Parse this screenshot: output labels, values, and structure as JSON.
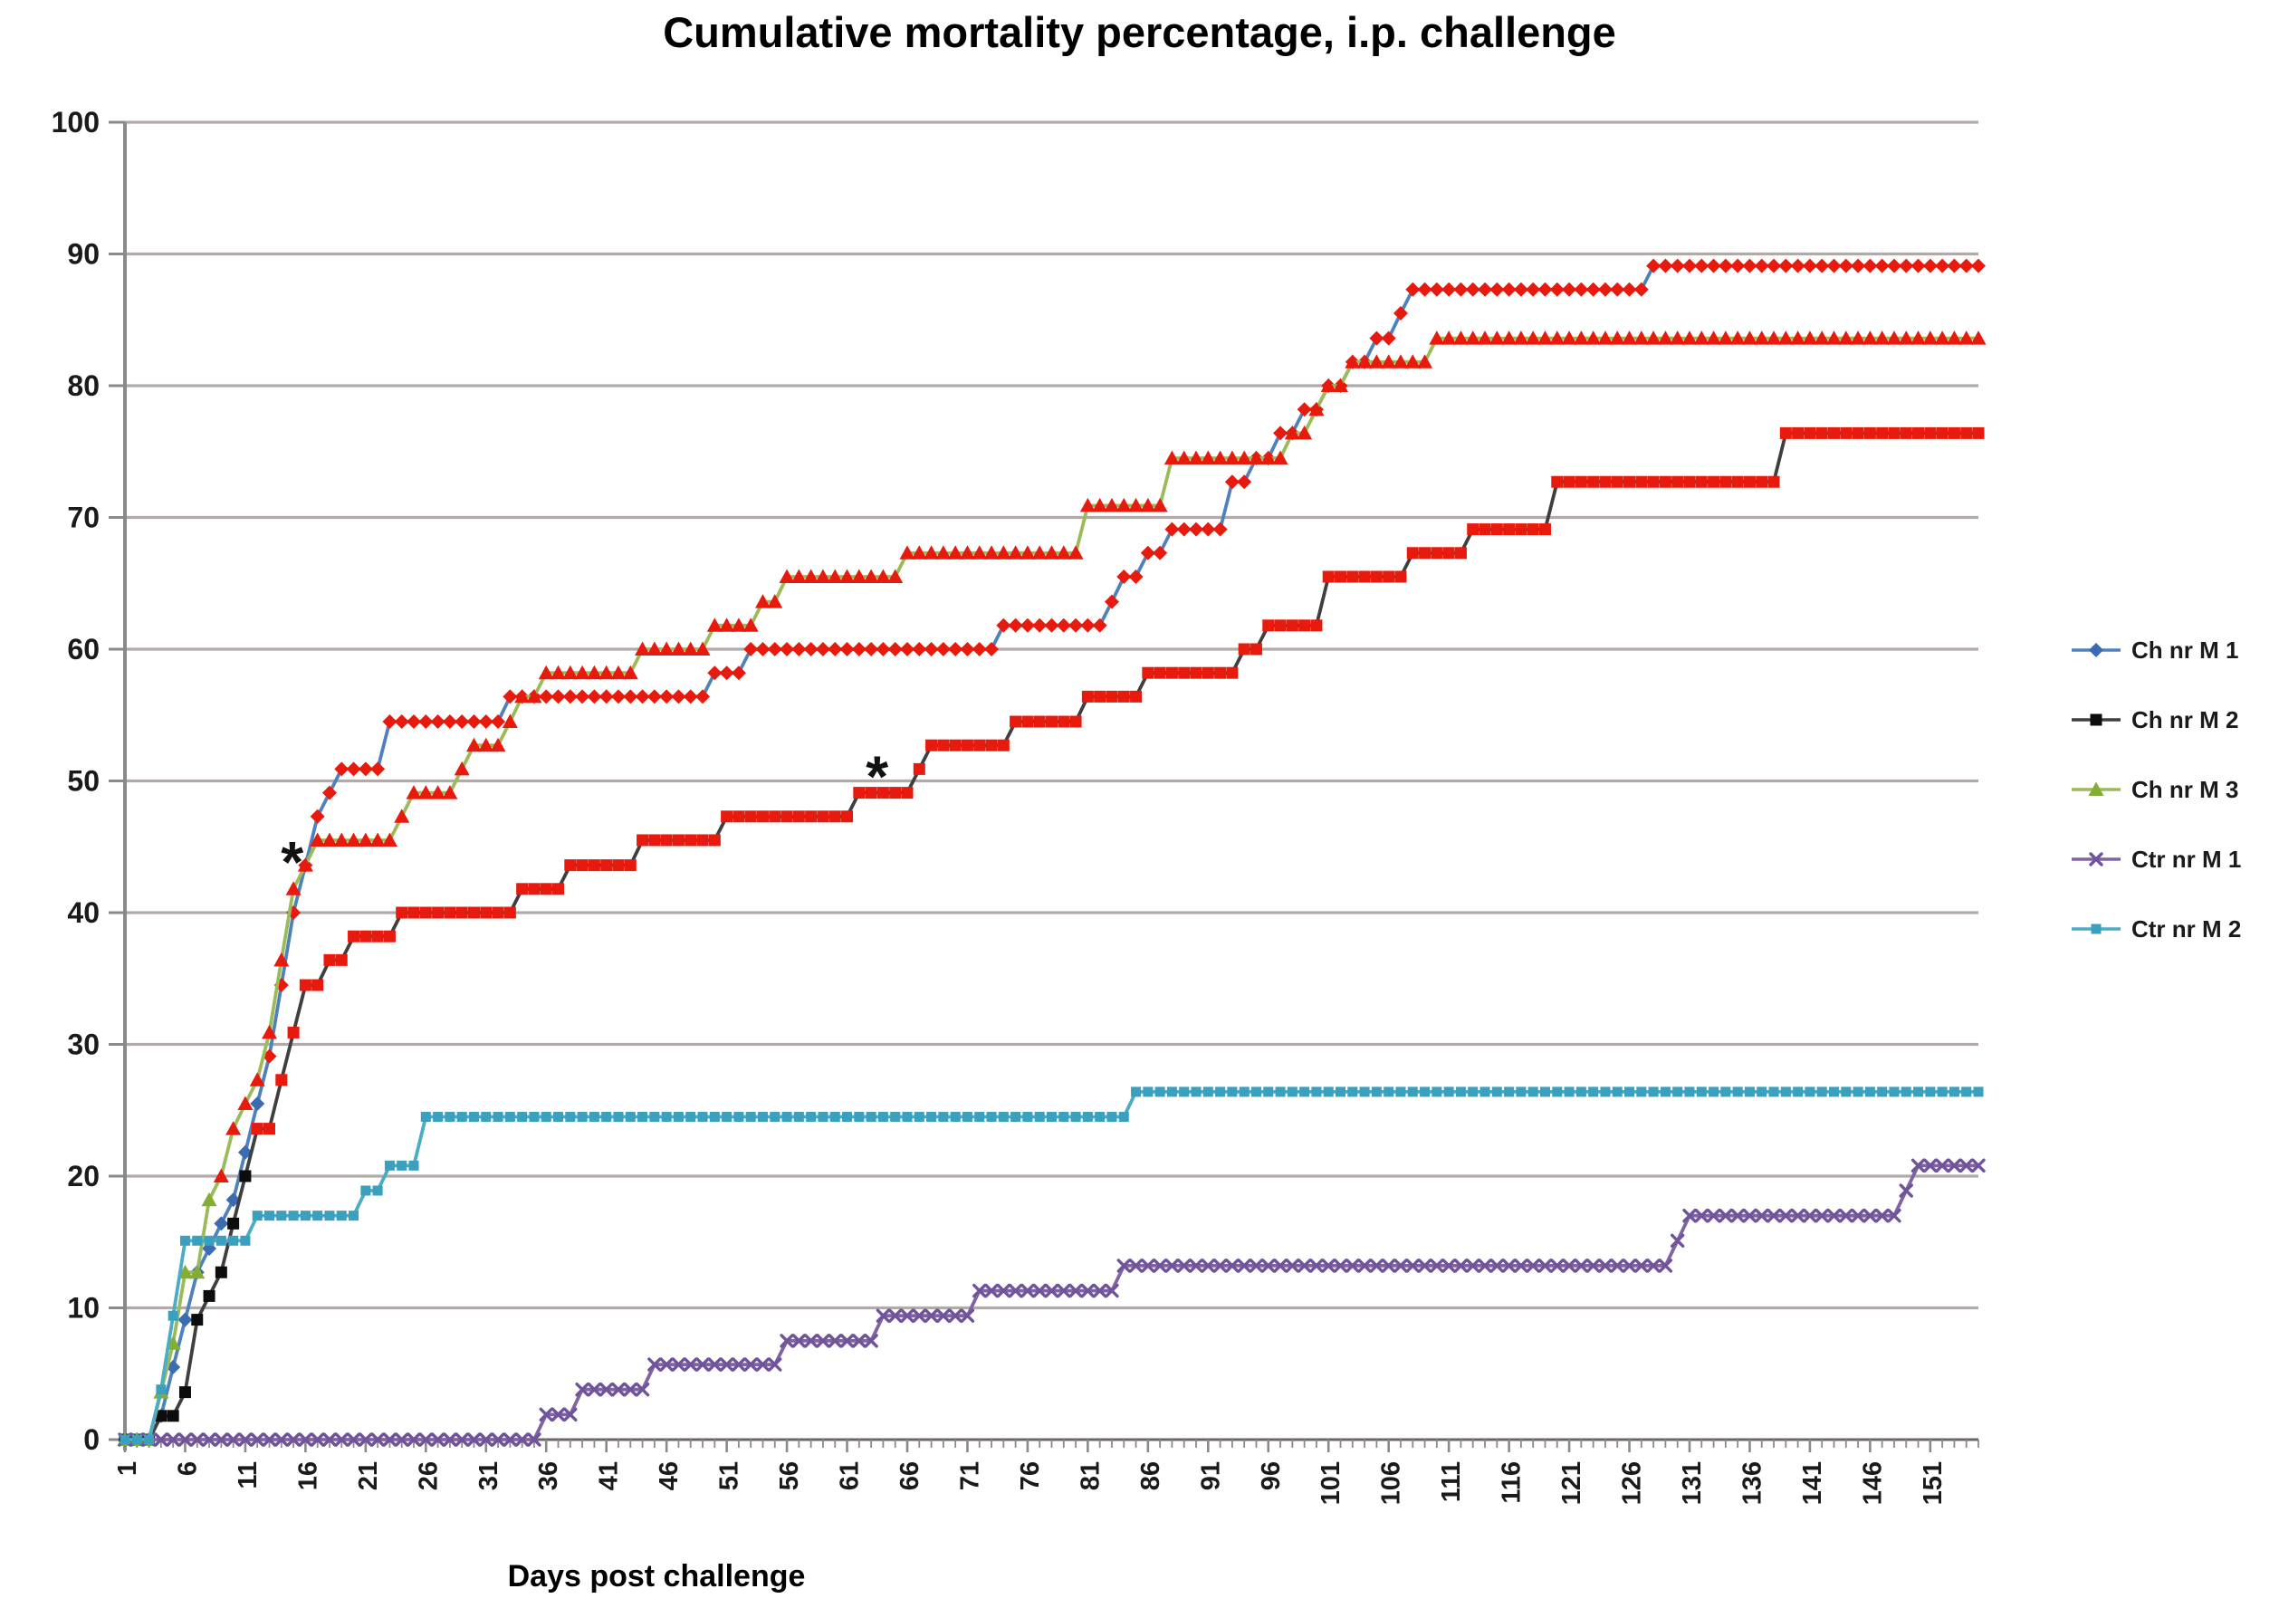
{
  "chart_data": {
    "type": "line",
    "title": "Cumulative mortality percentage, i.p. challenge",
    "xlabel": "Days post challenge",
    "ylabel": "",
    "xlim": [
      1,
      155
    ],
    "ylim": [
      0,
      100
    ],
    "grid": "horizontal",
    "legend_position": "right",
    "y_ticks": [
      0,
      10,
      20,
      30,
      40,
      50,
      60,
      70,
      80,
      90,
      100
    ],
    "x_tick_labels": [
      1,
      6,
      11,
      16,
      21,
      26,
      31,
      36,
      41,
      46,
      51,
      56,
      61,
      66,
      71,
      76,
      81,
      86,
      91,
      96,
      101,
      106,
      111,
      116,
      121,
      126,
      131,
      136,
      141,
      146,
      151
    ],
    "colors": {
      "grid": "#b2a9a9",
      "axis": "#8a8a8a",
      "baseline": "#6e6666",
      "tick_text": "#1a1a1a",
      "red_marker": "#e8190d",
      "annotation": "#111111"
    },
    "annotations": [
      {
        "text": "*",
        "day": 14.9,
        "value": 44.4
      },
      {
        "text": "*",
        "day": 63.5,
        "value": 50.9
      }
    ],
    "series": [
      {
        "name": "Ch nr M 1",
        "marker": "diamond",
        "line_color": "#4f81bd",
        "marker_color": "#3b6bb0",
        "red_from_day": 13,
        "breakpoints": [
          [
            1,
            0
          ],
          [
            4,
            1.8
          ],
          [
            5,
            5.5
          ],
          [
            6,
            9.1
          ],
          [
            7,
            12.7
          ],
          [
            8,
            14.5
          ],
          [
            9,
            16.4
          ],
          [
            10,
            18.2
          ],
          [
            11,
            21.8
          ],
          [
            12,
            25.5
          ],
          [
            13,
            29.1
          ],
          [
            14,
            34.5
          ],
          [
            15,
            40
          ],
          [
            16,
            43.6
          ],
          [
            17,
            47.3
          ],
          [
            18,
            49.1
          ],
          [
            19,
            50.9
          ],
          [
            23,
            54.5
          ],
          [
            33,
            56.4
          ],
          [
            50,
            58.2
          ],
          [
            53,
            60
          ],
          [
            74,
            61.8
          ],
          [
            83,
            63.6
          ],
          [
            84,
            65.5
          ],
          [
            86,
            67.3
          ],
          [
            88,
            69.1
          ],
          [
            93,
            72.7
          ],
          [
            95,
            74.5
          ],
          [
            97,
            76.4
          ],
          [
            99,
            78.2
          ],
          [
            101,
            80
          ],
          [
            103,
            81.8
          ],
          [
            105,
            83.6
          ],
          [
            107,
            85.5
          ],
          [
            108,
            87.3
          ],
          [
            128,
            89.1
          ]
        ]
      },
      {
        "name": "Ch nr M 2",
        "marker": "square",
        "line_color": "#3f3f3f",
        "marker_color": "#0d0d0d",
        "red_from_day": 12,
        "breakpoints": [
          [
            1,
            0
          ],
          [
            4,
            1.8
          ],
          [
            6,
            3.6
          ],
          [
            7,
            9.1
          ],
          [
            8,
            10.9
          ],
          [
            9,
            12.7
          ],
          [
            10,
            16.4
          ],
          [
            11,
            20
          ],
          [
            12,
            23.6
          ],
          [
            14,
            27.3
          ],
          [
            15,
            30.9
          ],
          [
            16,
            34.5
          ],
          [
            18,
            36.4
          ],
          [
            20,
            38.2
          ],
          [
            24,
            40
          ],
          [
            34,
            41.8
          ],
          [
            38,
            43.6
          ],
          [
            44,
            45.5
          ],
          [
            51,
            47.3
          ],
          [
            62,
            49.1
          ],
          [
            67,
            50.9
          ],
          [
            68,
            52.7
          ],
          [
            75,
            54.5
          ],
          [
            81,
            56.4
          ],
          [
            86,
            58.2
          ],
          [
            94,
            60
          ],
          [
            96,
            61.8
          ],
          [
            101,
            65.5
          ],
          [
            108,
            67.3
          ],
          [
            113,
            69.1
          ],
          [
            120,
            72.7
          ],
          [
            139,
            76.4
          ]
        ]
      },
      {
        "name": "Ch nr M 3",
        "marker": "triangle",
        "line_color": "#9bbb59",
        "marker_color": "#84ad33",
        "red_from_day": 9,
        "breakpoints": [
          [
            1,
            0
          ],
          [
            4,
            3.6
          ],
          [
            5,
            7.3
          ],
          [
            6,
            12.7
          ],
          [
            8,
            18.2
          ],
          [
            9,
            20
          ],
          [
            10,
            23.6
          ],
          [
            11,
            25.5
          ],
          [
            12,
            27.3
          ],
          [
            13,
            30.9
          ],
          [
            14,
            36.4
          ],
          [
            15,
            41.8
          ],
          [
            16,
            43.6
          ],
          [
            17,
            45.5
          ],
          [
            24,
            47.3
          ],
          [
            25,
            49.1
          ],
          [
            29,
            50.9
          ],
          [
            30,
            52.7
          ],
          [
            33,
            54.5
          ],
          [
            34,
            56.4
          ],
          [
            36,
            58.2
          ],
          [
            44,
            60
          ],
          [
            50,
            61.8
          ],
          [
            54,
            63.6
          ],
          [
            56,
            65.5
          ],
          [
            66,
            67.3
          ],
          [
            81,
            70.9
          ],
          [
            88,
            74.5
          ],
          [
            98,
            76.4
          ],
          [
            100,
            78.2
          ],
          [
            101,
            80
          ],
          [
            103,
            81.8
          ],
          [
            110,
            83.6
          ]
        ]
      },
      {
        "name": "Ctr nr M 1",
        "marker": "xcross",
        "line_color": "#8064a2",
        "marker_color": "#6f539b",
        "red_from_day": null,
        "breakpoints": [
          [
            1,
            0
          ],
          [
            36,
            1.9
          ],
          [
            39,
            3.8
          ],
          [
            45,
            5.7
          ],
          [
            56,
            7.5
          ],
          [
            64,
            9.4
          ],
          [
            72,
            11.3
          ],
          [
            84,
            13.2
          ],
          [
            130,
            15.1
          ],
          [
            131,
            17
          ],
          [
            149,
            18.9
          ],
          [
            150,
            20.8
          ]
        ]
      },
      {
        "name": "Ctr nr M 2",
        "marker": "smallsquare",
        "line_color": "#4bacc6",
        "marker_color": "#3aa0bd",
        "red_from_day": null,
        "breakpoints": [
          [
            1,
            0
          ],
          [
            4,
            3.8
          ],
          [
            5,
            9.4
          ],
          [
            6,
            15.1
          ],
          [
            12,
            17
          ],
          [
            21,
            18.9
          ],
          [
            23,
            20.8
          ],
          [
            26,
            24.5
          ],
          [
            85,
            26.4
          ]
        ]
      }
    ]
  }
}
